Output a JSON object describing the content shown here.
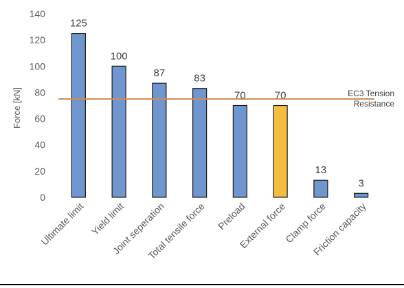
{
  "chart_data": {
    "type": "bar",
    "title": "",
    "xlabel": "",
    "ylabel": "Force [kN]",
    "ylim": [
      0,
      140
    ],
    "yticks": [
      0,
      20,
      40,
      60,
      80,
      100,
      120,
      140
    ],
    "grid": false,
    "categories": [
      "Ultimate limit",
      "Yield limit",
      "Joint seperation",
      "Total tensile force",
      "Preload",
      "External force",
      "Clamp force",
      "Friction capacity"
    ],
    "values": [
      125,
      100,
      87,
      83,
      70,
      70,
      13,
      3
    ],
    "data_labels": [
      "125",
      "100",
      "87",
      "83",
      "70",
      "70",
      "13",
      "3"
    ],
    "bar_colors": [
      "#6f96cf",
      "#6f96cf",
      "#6f96cf",
      "#6f96cf",
      "#6f96cf",
      "#f5bd3f",
      "#6f96cf",
      "#6f96cf"
    ],
    "reference_line": {
      "value": 75,
      "label_lines": [
        "EC3 Tension",
        "Resistance"
      ],
      "color": "#d08c54"
    },
    "x_tick_rotation_deg": -45
  }
}
